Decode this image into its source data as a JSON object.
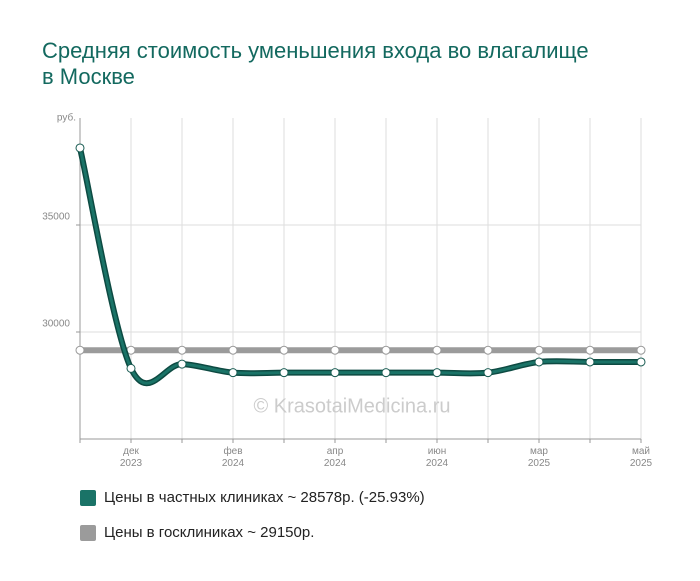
{
  "chart_data": {
    "type": "line",
    "title": "Средняя стоимость уменьшения входа во влагалище в Москве",
    "y_label": "руб.",
    "categories": [
      null,
      "дек 2023",
      null,
      "фев 2024",
      null,
      "апр 2024",
      null,
      "июн 2024",
      null,
      "мар 2025",
      null,
      "май 2025"
    ],
    "series": [
      {
        "name": "Цены в частных клиниках ~ 28578р. (-25.93%)",
        "color": "#1a7367",
        "values": [
          38600,
          28300,
          28500,
          28100,
          28100,
          28100,
          28100,
          28100,
          28100,
          28600,
          28600,
          28600
        ]
      },
      {
        "name": "Цены в госклиниках ~ 29150р.",
        "color": "#9b9b9b",
        "values": [
          29150,
          29150,
          29150,
          29150,
          29150,
          29150,
          29150,
          29150,
          29150,
          29150,
          29150,
          29150
        ]
      }
    ],
    "ylim": [
      25000,
      40000
    ],
    "yticks": [
      30000,
      35000
    ],
    "grid": true,
    "watermark": "© KrasotaiMedicina.ru"
  }
}
